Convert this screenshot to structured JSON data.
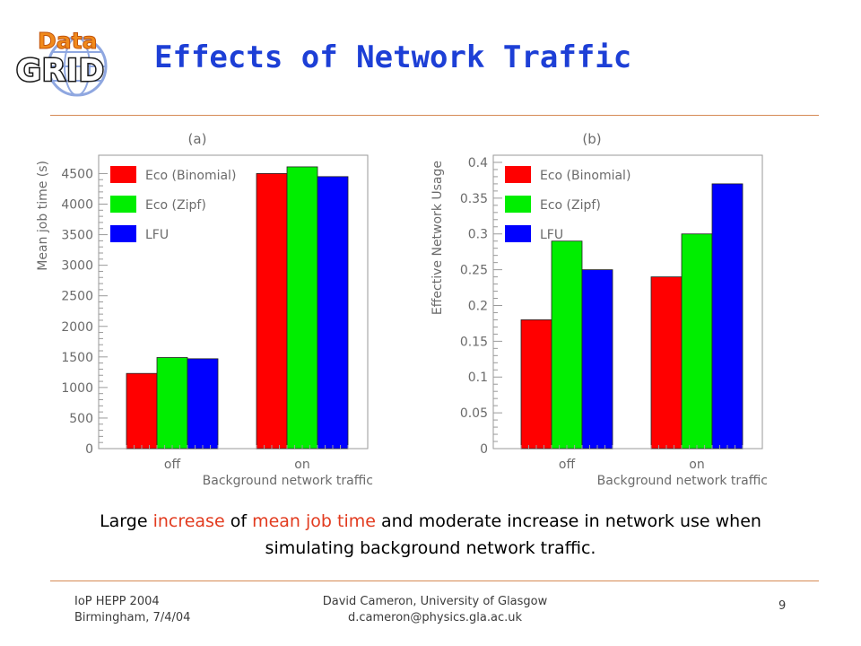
{
  "header": {
    "logo": {
      "word_top": "Data",
      "word_bottom": "GRID"
    },
    "title": "Effects of Network Traffic"
  },
  "chart_data": [
    {
      "type": "bar",
      "panel_label": "(a)",
      "categories": [
        "off",
        "on"
      ],
      "xlabel": "Background network traffic",
      "ylabel": "Mean job time (s)",
      "ylim": [
        0,
        4800
      ],
      "yticks": [
        0,
        500,
        1000,
        1500,
        2000,
        2500,
        3000,
        3500,
        4000,
        4500
      ],
      "legend_position": "top-left",
      "series": [
        {
          "name": "Eco (Binomial)",
          "color": "#ff0000",
          "values": [
            1230,
            4500
          ]
        },
        {
          "name": "Eco (Zipf)",
          "color": "#00ee00",
          "values": [
            1490,
            4610
          ]
        },
        {
          "name": "LFU",
          "color": "#0000ff",
          "values": [
            1470,
            4450
          ]
        }
      ]
    },
    {
      "type": "bar",
      "panel_label": "(b)",
      "categories": [
        "off",
        "on"
      ],
      "xlabel": "Background network traffic",
      "ylabel": "Effective Network Usage",
      "ylim": [
        0,
        0.41
      ],
      "yticks": [
        0,
        0.05,
        0.1,
        0.15,
        0.2,
        0.25,
        0.3,
        0.35,
        0.4
      ],
      "legend_position": "top-left",
      "series": [
        {
          "name": "Eco (Binomial)",
          "color": "#ff0000",
          "values": [
            0.18,
            0.24
          ]
        },
        {
          "name": "Eco (Zipf)",
          "color": "#00ee00",
          "values": [
            0.29,
            0.3
          ]
        },
        {
          "name": "LFU",
          "color": "#0000ff",
          "values": [
            0.25,
            0.37
          ]
        }
      ]
    }
  ],
  "caption": {
    "part1": "Large ",
    "hl1": "increase",
    "part2": " of ",
    "hl2": "mean job time",
    "part3": " and moderate increase in network use when simulating background network traffic."
  },
  "footer": {
    "left_line1": "IoP HEPP 2004",
    "left_line2": "Birmingham, 7/4/04",
    "mid_line1": "David Cameron, University of Glasgow",
    "mid_line2": "d.cameron@physics.gla.ac.uk",
    "page_number": "9"
  },
  "colors": {
    "title": "#1d3fd6",
    "rule": "#d58a54",
    "highlight": "#e23b1f"
  }
}
